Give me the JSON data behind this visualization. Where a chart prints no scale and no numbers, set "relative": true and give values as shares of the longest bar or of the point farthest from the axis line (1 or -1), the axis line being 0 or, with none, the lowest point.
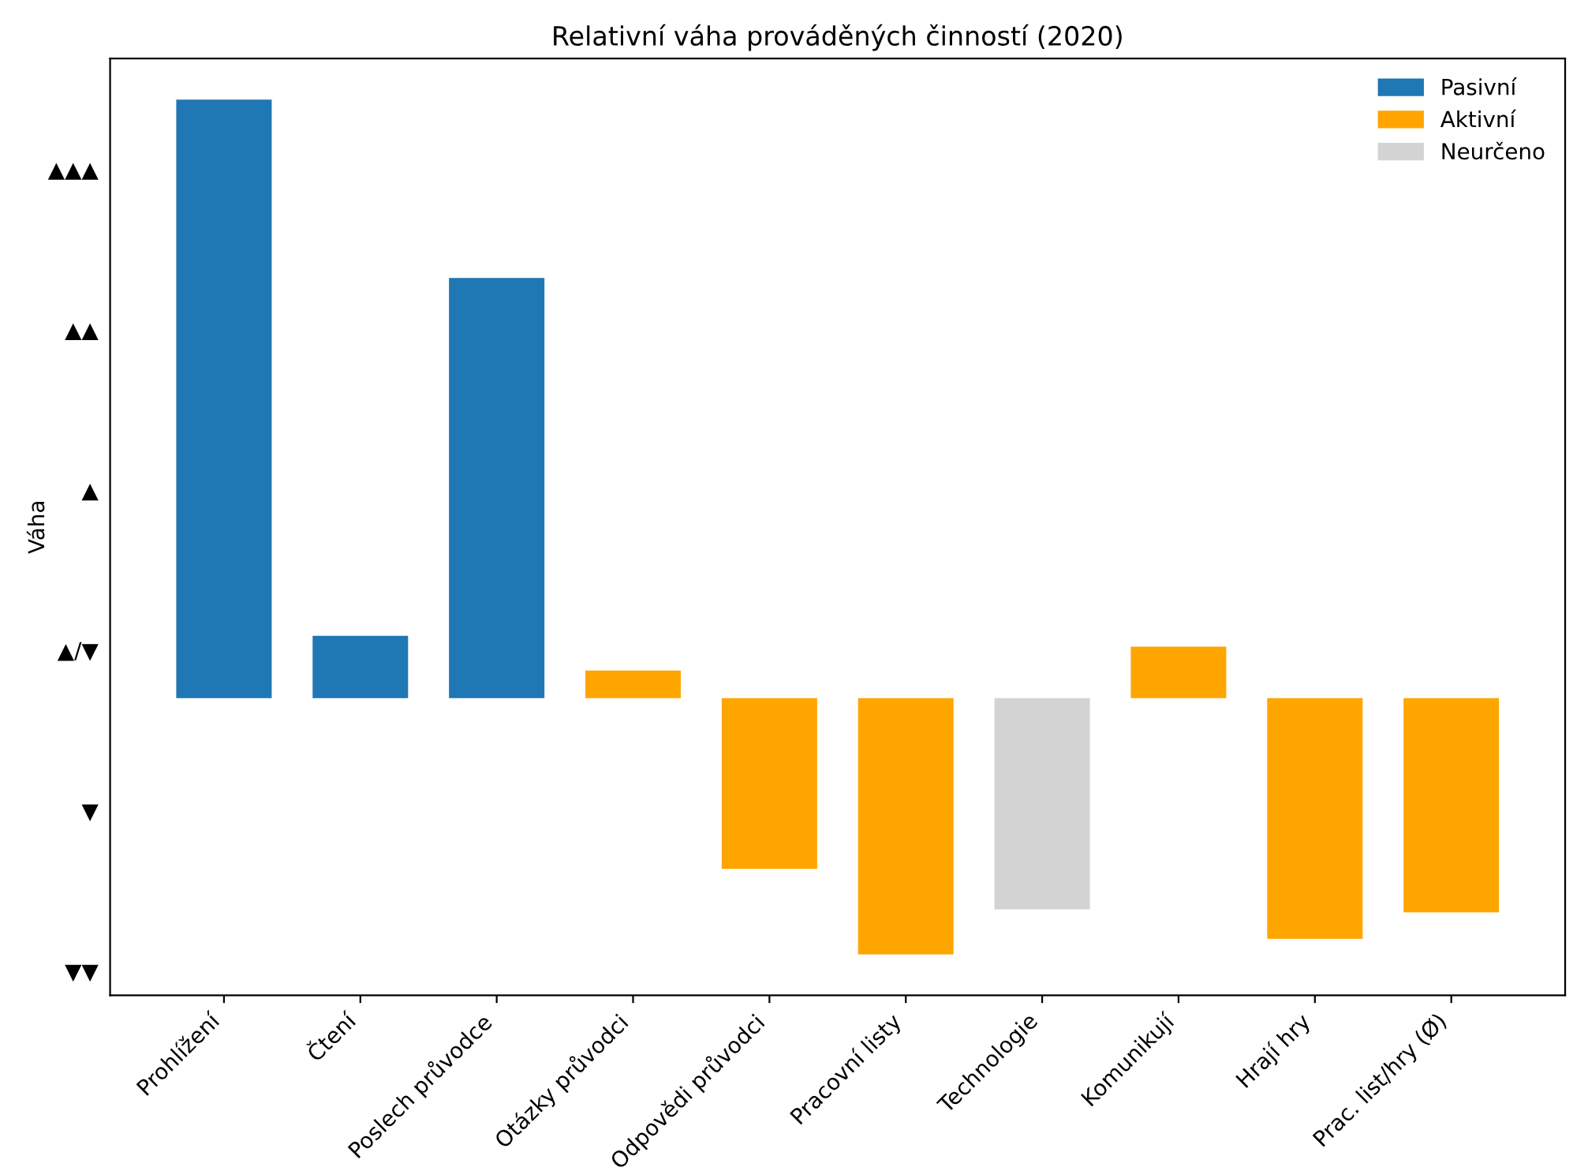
{
  "chart_data": {
    "type": "bar",
    "title": "Relativní váha prováděných činností (2020)",
    "ylabel": "Váha",
    "relative": true,
    "categories": [
      "Prohlížení",
      "Čtení",
      "Poslech průvodce",
      "Otázky průvodci",
      "Odpovědi průvodci",
      "Pracovní listy",
      "Technologie",
      "Komunikují",
      "Hrají hry",
      "Prac. list/hry (Ø)"
    ],
    "series": [
      {
        "name": "Pasivní",
        "color": "#1f77b4",
        "values": [
          1,
          0.104,
          0.702,
          null,
          null,
          null,
          null,
          null,
          null,
          null
        ]
      },
      {
        "name": "Aktivní",
        "color": "#ffa500",
        "values": [
          null,
          null,
          null,
          0.046,
          -0.285,
          -0.428,
          null,
          0.086,
          -0.402,
          -0.358
        ]
      },
      {
        "name": "Neurčeno",
        "color": "#d3d3d3",
        "values": [
          null,
          null,
          null,
          null,
          null,
          null,
          -0.353,
          null,
          null,
          null
        ]
      }
    ],
    "annotations": [
      "▼▼",
      "▼",
      "▲/▼",
      "▲",
      "▲▲",
      "▲▲▲"
    ],
    "grid": false,
    "legend": "top right"
  }
}
